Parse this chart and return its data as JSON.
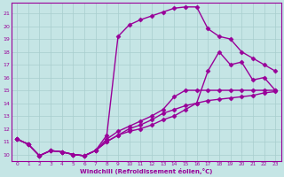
{
  "xlabel": "Windchill (Refroidissement éolien,°C)",
  "ylabel_ticks": [
    10,
    11,
    12,
    13,
    14,
    15,
    16,
    17,
    18,
    19,
    20,
    21
  ],
  "xlim_min": -0.5,
  "xlim_max": 23.5,
  "ylim_min": 9.5,
  "ylim_max": 21.8,
  "background_color": "#c5e5e5",
  "grid_color": "#a8cece",
  "line_color": "#990099",
  "line_width": 1.0,
  "marker": "D",
  "marker_size": 2.5,
  "lines": [
    [
      11.2,
      10.8,
      9.9,
      10.3,
      10.2,
      10.0,
      9.9,
      10.3,
      11.0,
      11.5,
      12.0,
      12.3,
      12.7,
      13.2,
      13.5,
      13.8,
      14.0,
      16.5,
      18.0,
      17.0,
      17.2,
      15.8,
      16.0,
      15.0
    ],
    [
      11.2,
      10.8,
      9.9,
      10.3,
      10.2,
      10.0,
      9.9,
      10.3,
      11.0,
      11.5,
      11.8,
      12.0,
      12.3,
      12.7,
      13.0,
      13.5,
      14.0,
      14.2,
      14.3,
      14.4,
      14.5,
      14.6,
      14.8,
      14.9
    ],
    [
      11.2,
      10.8,
      9.9,
      10.3,
      10.2,
      10.0,
      9.9,
      10.3,
      11.2,
      11.8,
      12.2,
      12.6,
      13.0,
      13.5,
      14.5,
      15.0,
      15.0,
      15.0,
      15.0,
      15.0,
      15.0,
      15.0,
      15.0,
      15.0
    ],
    [
      11.2,
      10.8,
      9.9,
      10.3,
      10.2,
      10.0,
      9.9,
      10.3,
      11.5,
      19.2,
      20.1,
      20.5,
      20.8,
      21.1,
      21.4,
      21.5,
      21.5,
      19.8,
      19.2,
      19.0,
      18.0,
      17.5,
      17.0,
      16.5
    ]
  ]
}
